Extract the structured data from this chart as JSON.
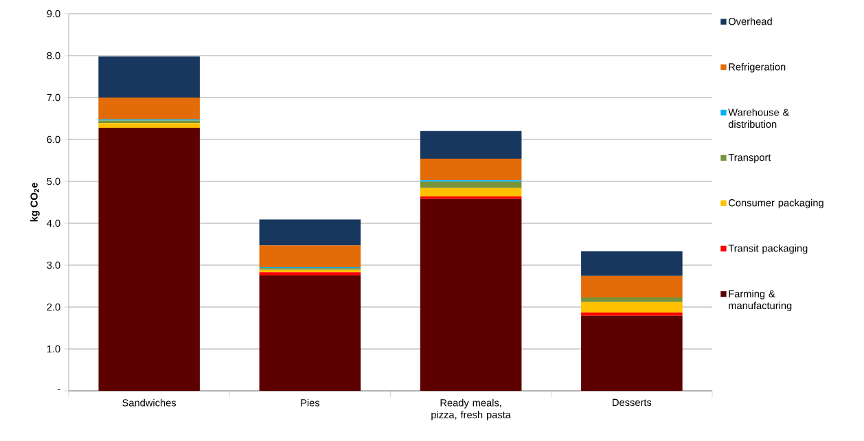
{
  "chart_data": {
    "type": "bar",
    "stacked": true,
    "ylabel": "**kg CO$_{2}$e**",
    "categories": [
      "Sandwiches",
      "Pies",
      "Ready meals, pizza, fresh pasta",
      "Desserts"
    ],
    "series": [
      {
        "name": "Farming & manufacturing",
        "color": "#5c0000",
        "values": [
          6.28,
          2.76,
          4.58,
          1.79
        ]
      },
      {
        "name": "Transit packaging",
        "color": "#ff0000",
        "values": [
          0.0,
          0.07,
          0.06,
          0.08
        ]
      },
      {
        "name": "Consumer packaging",
        "color": "#ffc000",
        "values": [
          0.11,
          0.06,
          0.2,
          0.25
        ]
      },
      {
        "name": "Transport",
        "color": "#77933c",
        "values": [
          0.06,
          0.04,
          0.15,
          0.11
        ]
      },
      {
        "name": "Warehouse & distribution",
        "color": "#00b0f0",
        "values": [
          0.03,
          0.02,
          0.04,
          0.0
        ]
      },
      {
        "name": "Refrigeration",
        "color": "#e36c09",
        "values": [
          0.52,
          0.52,
          0.51,
          0.51
        ]
      },
      {
        "name": "Overhead",
        "color": "#17375e",
        "values": [
          0.98,
          0.62,
          0.66,
          0.59
        ]
      }
    ],
    "ylim": [
      0,
      9
    ],
    "yticks": [
      {
        "value": 0,
        "label": "-"
      },
      {
        "value": 1,
        "label": "1.0"
      },
      {
        "value": 2,
        "label": "2.0"
      },
      {
        "value": 3,
        "label": "3.0"
      },
      {
        "value": 4,
        "label": "4.0"
      },
      {
        "value": 5,
        "label": "5.0"
      },
      {
        "value": 6,
        "label": "6.0"
      },
      {
        "value": 7,
        "label": "7.0"
      },
      {
        "value": 8,
        "label": "8.0"
      },
      {
        "value": 9,
        "label": "9.0"
      }
    ],
    "grid": "y",
    "legend": "right"
  }
}
